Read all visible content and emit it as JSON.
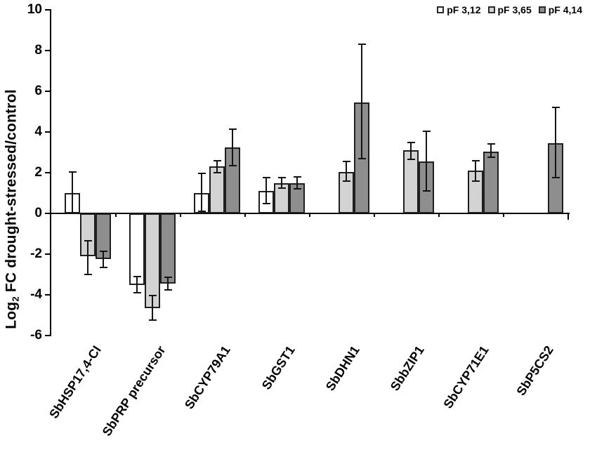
{
  "figure": {
    "background": "#ffffff",
    "ylabel": {
      "pre": "Log",
      "sub": "2",
      "post": " FC drought-stressed/control"
    }
  },
  "chart_data": {
    "type": "bar",
    "title": "",
    "xlabel": "",
    "ylabel": "Log2 FC drought-stressed/control",
    "ylim": [
      -6,
      10
    ],
    "ytick_step": 2,
    "yticks": [
      10,
      8,
      6,
      4,
      2,
      0,
      -2,
      -4,
      -6
    ],
    "grid": false,
    "legend_position": "top-right",
    "error_bars": true,
    "categories": [
      "SbHSP17,4-CI",
      "SbPRP precursor",
      "SbCYP79A1",
      "SbGST1",
      "SbDHN1",
      "SbbZIP1",
      "SbCYP71E1",
      "SbP5CS2"
    ],
    "series": [
      {
        "name": "pF 3,12",
        "fill": "#ffffff",
        "border": "#1f1f1f",
        "values": [
          1.0,
          -3.5,
          1.0,
          1.1,
          null,
          null,
          null,
          null
        ],
        "err_up": [
          1.05,
          0.4,
          0.95,
          0.65,
          null,
          null,
          null,
          null
        ],
        "err_down": [
          1.0,
          0.4,
          0.9,
          0.6,
          null,
          null,
          null,
          null
        ]
      },
      {
        "name": "pF 3,65",
        "fill": "#d3d3d3",
        "border": "#1f1f1f",
        "values": [
          -2.1,
          -4.65,
          2.3,
          1.5,
          2.05,
          3.1,
          2.1,
          null
        ],
        "err_up": [
          0.75,
          0.6,
          0.3,
          0.25,
          0.5,
          0.4,
          0.5,
          null
        ],
        "err_down": [
          0.9,
          0.6,
          0.3,
          0.25,
          0.45,
          0.45,
          0.5,
          null
        ]
      },
      {
        "name": "pF 4,14",
        "fill": "#8e8e8e",
        "border": "#1f1f1f",
        "values": [
          -2.25,
          -3.45,
          3.25,
          1.5,
          5.45,
          2.55,
          3.05,
          3.45
        ],
        "err_up": [
          0.4,
          0.3,
          0.9,
          0.3,
          2.85,
          1.5,
          0.35,
          1.75
        ],
        "err_down": [
          0.4,
          0.3,
          0.9,
          0.3,
          2.75,
          1.45,
          0.3,
          1.7
        ]
      }
    ]
  }
}
